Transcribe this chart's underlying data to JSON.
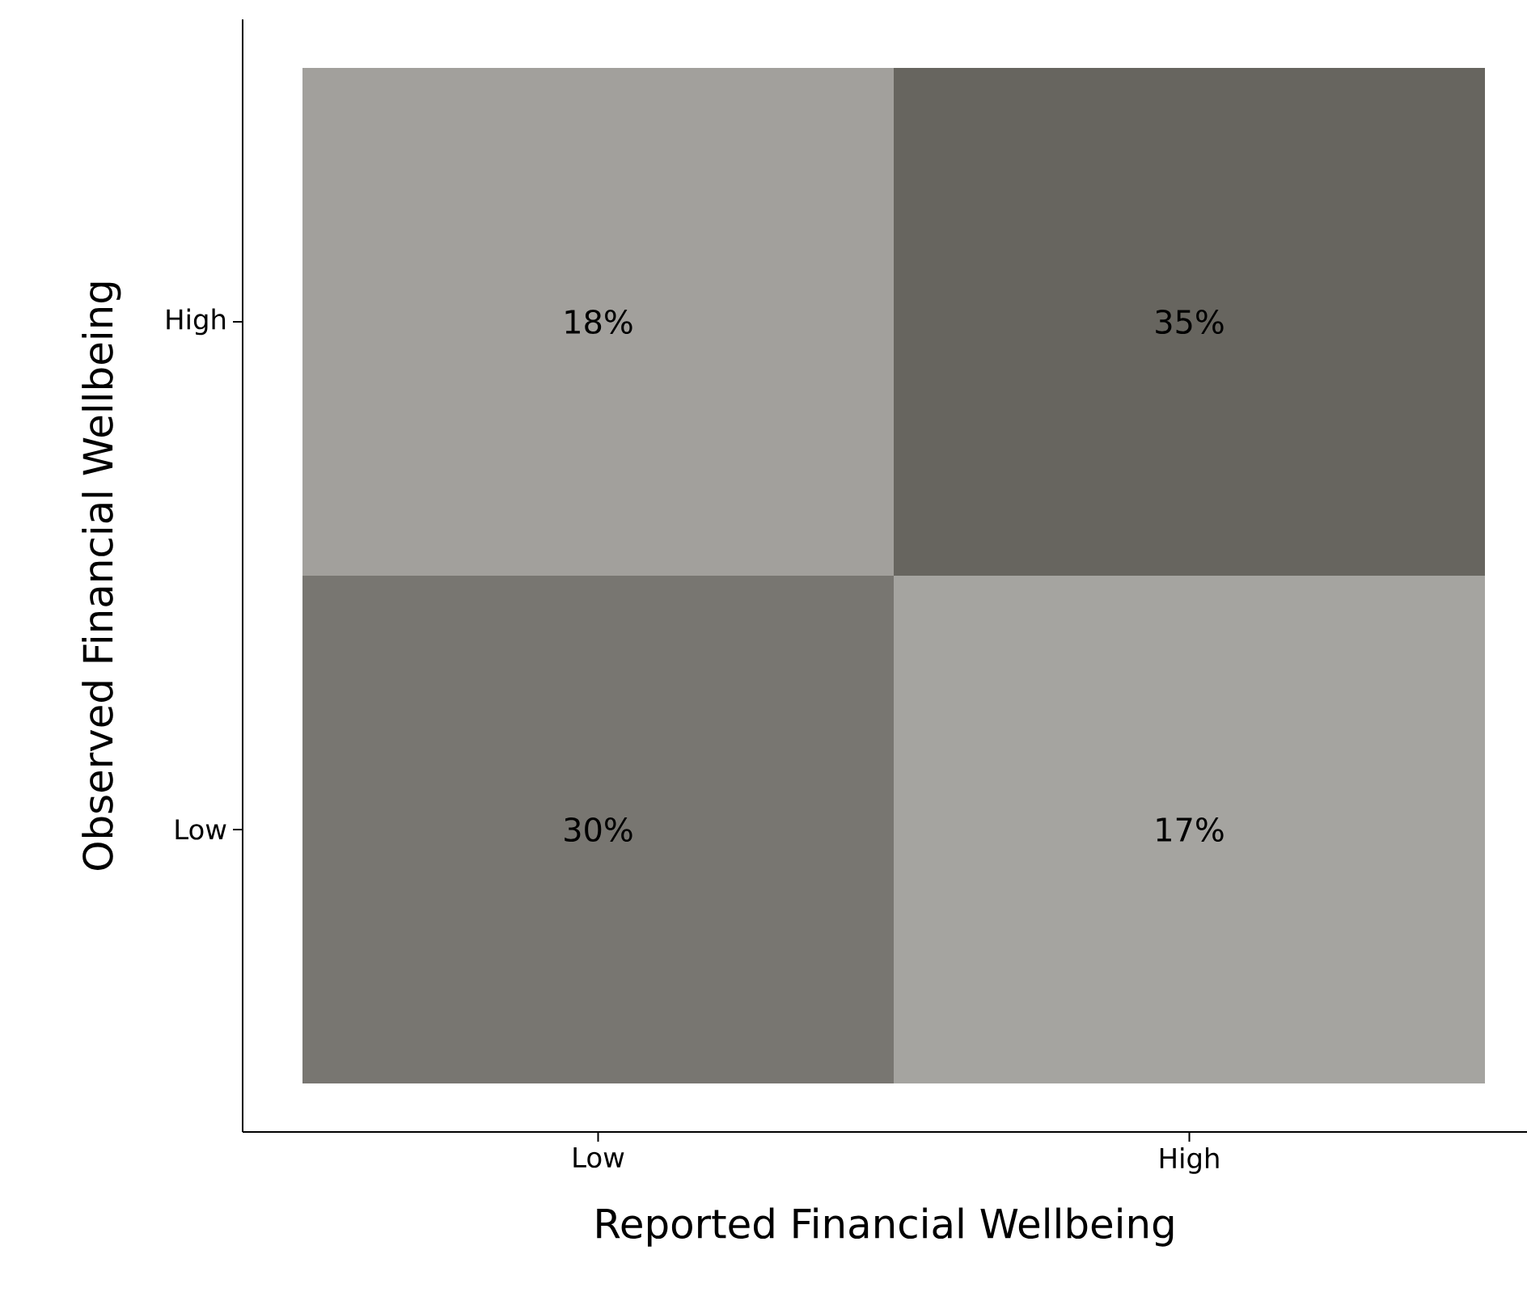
{
  "chart_data": {
    "type": "heatmap",
    "xlabel": "Reported Financial Wellbeing",
    "ylabel": "Observed Financial Wellbeing",
    "categories": [
      "Low",
      "High"
    ],
    "y_categories": [
      "High",
      "Low"
    ],
    "cells": [
      [
        18,
        35
      ],
      [
        30,
        17
      ]
    ],
    "cell_labels": [
      [
        "18%",
        "35%"
      ],
      [
        "30%",
        "17%"
      ]
    ]
  }
}
